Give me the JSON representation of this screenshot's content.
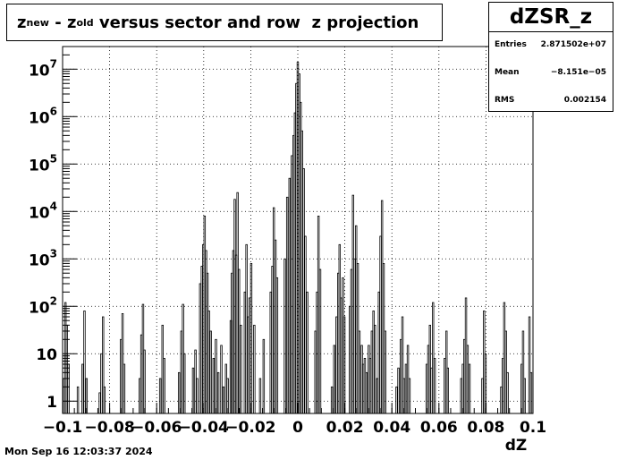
{
  "title": {
    "base": "z",
    "sub1": "new",
    "mid": " - z",
    "sub2": "old",
    "rest": " versus sector and row  z projection"
  },
  "stats": {
    "name": "dZSR_z",
    "entries_label": "Entries",
    "entries_value": "2.871502e+07",
    "mean_label": "Mean",
    "mean_value": "−8.151e−05",
    "rms_label": "RMS",
    "rms_value": "0.002154"
  },
  "timestamp": "Mon Sep 16 12:03:37 2024",
  "chart_data": {
    "type": "bar",
    "title": "z_new - z_old versus sector and row  z projection",
    "xlabel": "dZ",
    "ylabel": "",
    "xlim": [
      -0.1,
      0.1
    ],
    "ylim": [
      0.55,
      30000000
    ],
    "y_log": true,
    "grid": true,
    "x_ticks": [
      {
        "v": -0.1,
        "label": "−0.1"
      },
      {
        "v": -0.08,
        "label": "−0.08"
      },
      {
        "v": -0.06,
        "label": "−0.06"
      },
      {
        "v": -0.04,
        "label": "−0.04"
      },
      {
        "v": -0.02,
        "label": "−0.02"
      },
      {
        "v": 0,
        "label": "0"
      },
      {
        "v": 0.02,
        "label": "0.02"
      },
      {
        "v": 0.04,
        "label": "0.04"
      },
      {
        "v": 0.06,
        "label": "0.06"
      },
      {
        "v": 0.08,
        "label": "0.08"
      },
      {
        "v": 0.1,
        "label": "0.1"
      }
    ],
    "y_ticks": [
      {
        "v": 1,
        "base": "1",
        "exp": ""
      },
      {
        "v": 10,
        "base": "10",
        "exp": ""
      },
      {
        "v": 100,
        "base": "10",
        "exp": "2"
      },
      {
        "v": 1000,
        "base": "10",
        "exp": "3"
      },
      {
        "v": 10000,
        "base": "10",
        "exp": "4"
      },
      {
        "v": 100000,
        "base": "10",
        "exp": "5"
      },
      {
        "v": 1000000,
        "base": "10",
        "exp": "6"
      },
      {
        "v": 10000000,
        "base": "10",
        "exp": "7"
      }
    ],
    "peaks": [
      {
        "x": -0.0995,
        "y": 3
      },
      {
        "x": -0.0988,
        "y": 120
      },
      {
        "x": -0.0982,
        "y": 40
      },
      {
        "x": -0.0975,
        "y": 6
      },
      {
        "x": -0.0935,
        "y": 2
      },
      {
        "x": -0.0915,
        "y": 6
      },
      {
        "x": -0.0907,
        "y": 80
      },
      {
        "x": -0.0898,
        "y": 3
      },
      {
        "x": -0.0842,
        "y": 1.5
      },
      {
        "x": -0.0835,
        "y": 10
      },
      {
        "x": -0.0828,
        "y": 60
      },
      {
        "x": -0.0822,
        "y": 2
      },
      {
        "x": -0.0752,
        "y": 20
      },
      {
        "x": -0.0745,
        "y": 70
      },
      {
        "x": -0.0738,
        "y": 6
      },
      {
        "x": -0.0672,
        "y": 3
      },
      {
        "x": -0.0665,
        "y": 25
      },
      {
        "x": -0.0658,
        "y": 110
      },
      {
        "x": -0.0652,
        "y": 12
      },
      {
        "x": -0.0585,
        "y": 3
      },
      {
        "x": -0.0575,
        "y": 40
      },
      {
        "x": -0.0568,
        "y": 8
      },
      {
        "x": -0.0505,
        "y": 4
      },
      {
        "x": -0.0495,
        "y": 30
      },
      {
        "x": -0.0488,
        "y": 110
      },
      {
        "x": -0.0482,
        "y": 10
      },
      {
        "x": -0.0445,
        "y": 5
      },
      {
        "x": -0.0435,
        "y": 12
      },
      {
        "x": -0.0428,
        "y": 3
      },
      {
        "x": -0.0415,
        "y": 300
      },
      {
        "x": -0.0408,
        "y": 700
      },
      {
        "x": -0.0402,
        "y": 2000
      },
      {
        "x": -0.0396,
        "y": 8000
      },
      {
        "x": -0.039,
        "y": 1500
      },
      {
        "x": -0.0384,
        "y": 500
      },
      {
        "x": -0.0378,
        "y": 80
      },
      {
        "x": -0.037,
        "y": 30
      },
      {
        "x": -0.0358,
        "y": 8
      },
      {
        "x": -0.0348,
        "y": 20
      },
      {
        "x": -0.0338,
        "y": 4
      },
      {
        "x": -0.0325,
        "y": 15
      },
      {
        "x": -0.0316,
        "y": 2
      },
      {
        "x": -0.0305,
        "y": 6
      },
      {
        "x": -0.0298,
        "y": 3
      },
      {
        "x": -0.0285,
        "y": 50
      },
      {
        "x": -0.028,
        "y": 500
      },
      {
        "x": -0.0274,
        "y": 1500
      },
      {
        "x": -0.0268,
        "y": 18000
      },
      {
        "x": -0.0262,
        "y": 1200
      },
      {
        "x": -0.0256,
        "y": 25000
      },
      {
        "x": -0.025,
        "y": 600
      },
      {
        "x": -0.0242,
        "y": 40
      },
      {
        "x": -0.0225,
        "y": 200
      },
      {
        "x": -0.0218,
        "y": 2000
      },
      {
        "x": -0.0212,
        "y": 60
      },
      {
        "x": -0.0205,
        "y": 150
      },
      {
        "x": -0.0198,
        "y": 800
      },
      {
        "x": -0.0185,
        "y": 40
      },
      {
        "x": -0.016,
        "y": 3
      },
      {
        "x": -0.0145,
        "y": 20
      },
      {
        "x": -0.0115,
        "y": 200
      },
      {
        "x": -0.0108,
        "y": 700
      },
      {
        "x": -0.0102,
        "y": 12000
      },
      {
        "x": -0.0095,
        "y": 2500
      },
      {
        "x": -0.0088,
        "y": 400
      },
      {
        "x": -0.0055,
        "y": 1000
      },
      {
        "x": -0.0045,
        "y": 20000
      },
      {
        "x": -0.0035,
        "y": 50000
      },
      {
        "x": -0.0025,
        "y": 150000
      },
      {
        "x": -0.0018,
        "y": 400000
      },
      {
        "x": -0.0012,
        "y": 1200000
      },
      {
        "x": -0.0006,
        "y": 5000000
      },
      {
        "x": 0.0,
        "y": 14000000
      },
      {
        "x": 0.0006,
        "y": 8000000
      },
      {
        "x": 0.0012,
        "y": 2000000
      },
      {
        "x": 0.0018,
        "y": 500000
      },
      {
        "x": 0.0025,
        "y": 80000
      },
      {
        "x": 0.0032,
        "y": 3000
      },
      {
        "x": 0.004,
        "y": 200
      },
      {
        "x": 0.0075,
        "y": 30
      },
      {
        "x": 0.0082,
        "y": 200
      },
      {
        "x": 0.0088,
        "y": 8000
      },
      {
        "x": 0.0095,
        "y": 600
      },
      {
        "x": 0.0145,
        "y": 2
      },
      {
        "x": 0.0155,
        "y": 15
      },
      {
        "x": 0.0165,
        "y": 60
      },
      {
        "x": 0.0172,
        "y": 500
      },
      {
        "x": 0.0178,
        "y": 2000
      },
      {
        "x": 0.0185,
        "y": 150
      },
      {
        "x": 0.0192,
        "y": 400
      },
      {
        "x": 0.0198,
        "y": 60
      },
      {
        "x": 0.0222,
        "y": 100
      },
      {
        "x": 0.0228,
        "y": 600
      },
      {
        "x": 0.0235,
        "y": 22000
      },
      {
        "x": 0.0242,
        "y": 1000
      },
      {
        "x": 0.0248,
        "y": 5000
      },
      {
        "x": 0.0255,
        "y": 800
      },
      {
        "x": 0.0262,
        "y": 30
      },
      {
        "x": 0.0272,
        "y": 15
      },
      {
        "x": 0.0278,
        "y": 6
      },
      {
        "x": 0.0285,
        "y": 8
      },
      {
        "x": 0.0292,
        "y": 4
      },
      {
        "x": 0.0302,
        "y": 15
      },
      {
        "x": 0.0308,
        "y": 8
      },
      {
        "x": 0.0315,
        "y": 30
      },
      {
        "x": 0.0322,
        "y": 80
      },
      {
        "x": 0.0328,
        "y": 40
      },
      {
        "x": 0.0338,
        "y": 3
      },
      {
        "x": 0.0345,
        "y": 200
      },
      {
        "x": 0.0352,
        "y": 3000
      },
      {
        "x": 0.0358,
        "y": 17000
      },
      {
        "x": 0.0365,
        "y": 800
      },
      {
        "x": 0.0372,
        "y": 30
      },
      {
        "x": 0.042,
        "y": 2
      },
      {
        "x": 0.0428,
        "y": 5
      },
      {
        "x": 0.0438,
        "y": 20
      },
      {
        "x": 0.0445,
        "y": 60
      },
      {
        "x": 0.0452,
        "y": 3
      },
      {
        "x": 0.046,
        "y": 6
      },
      {
        "x": 0.0468,
        "y": 15
      },
      {
        "x": 0.0475,
        "y": 3
      },
      {
        "x": 0.0548,
        "y": 6
      },
      {
        "x": 0.0555,
        "y": 15
      },
      {
        "x": 0.0562,
        "y": 40
      },
      {
        "x": 0.0568,
        "y": 5
      },
      {
        "x": 0.0575,
        "y": 120
      },
      {
        "x": 0.0582,
        "y": 8
      },
      {
        "x": 0.0625,
        "y": 8
      },
      {
        "x": 0.0632,
        "y": 30
      },
      {
        "x": 0.0638,
        "y": 5
      },
      {
        "x": 0.0695,
        "y": 3
      },
      {
        "x": 0.0702,
        "y": 6
      },
      {
        "x": 0.0708,
        "y": 20
      },
      {
        "x": 0.0715,
        "y": 150
      },
      {
        "x": 0.0722,
        "y": 15
      },
      {
        "x": 0.073,
        "y": 6
      },
      {
        "x": 0.0785,
        "y": 3
      },
      {
        "x": 0.0792,
        "y": 80
      },
      {
        "x": 0.0798,
        "y": 10
      },
      {
        "x": 0.0865,
        "y": 2
      },
      {
        "x": 0.0872,
        "y": 8
      },
      {
        "x": 0.0878,
        "y": 120
      },
      {
        "x": 0.0885,
        "y": 30
      },
      {
        "x": 0.0892,
        "y": 4
      },
      {
        "x": 0.0952,
        "y": 6
      },
      {
        "x": 0.0958,
        "y": 30
      },
      {
        "x": 0.0965,
        "y": 3
      },
      {
        "x": 0.0985,
        "y": 60
      },
      {
        "x": 0.0992,
        "y": 4
      }
    ]
  }
}
